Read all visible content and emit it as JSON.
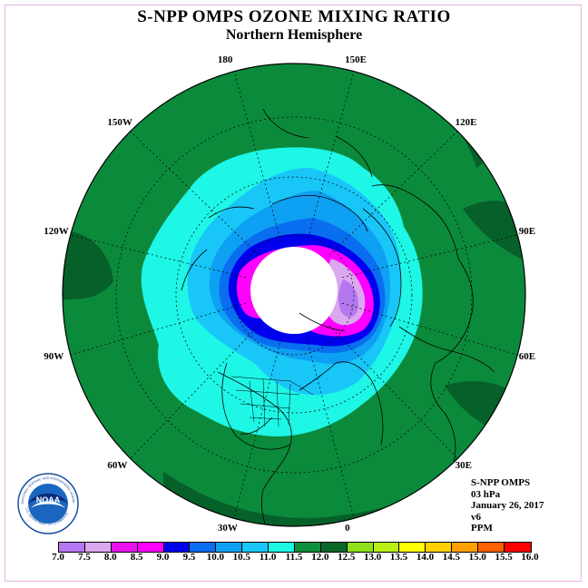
{
  "header": {
    "title": "S-NPP OMPS OZONE MIXING RATIO",
    "subtitle": "Northern Hemisphere"
  },
  "map": {
    "projection": "north-polar-stereographic",
    "longitude_labels": [
      {
        "text": "90E",
        "lon": 90
      },
      {
        "text": "60E",
        "lon": 60
      },
      {
        "text": "30E",
        "lon": 30
      },
      {
        "text": "0",
        "lon": 0
      },
      {
        "text": "30W",
        "lon": -30
      },
      {
        "text": "60W",
        "lon": -60
      },
      {
        "text": "90W",
        "lon": -90
      },
      {
        "text": "120W",
        "lon": -120
      },
      {
        "text": "150W",
        "lon": -150
      },
      {
        "text": "180",
        "lon": 180
      },
      {
        "text": "150E",
        "lon": 150
      },
      {
        "text": "120E",
        "lon": 120
      }
    ],
    "colors": {
      "outer": "#0c8a3c",
      "dark_green": "#06602a",
      "polar_no_data": "#ffffff"
    }
  },
  "info": {
    "instrument": "S-NPP OMPS",
    "level": "03 hPa",
    "date": "January 26, 2017",
    "version": "v6",
    "units": "PPM"
  },
  "colorbar": {
    "ticks": [
      "7.0",
      "7.5",
      "8.0",
      "8.5",
      "9.0",
      "9.5",
      "10.0",
      "10.5",
      "11.0",
      "11.5",
      "12.0",
      "12.5",
      "13.0",
      "13.5",
      "14.0",
      "14.5",
      "15.0",
      "15.5",
      "16.0"
    ],
    "colors": [
      "#b477f0",
      "#dba8ef",
      "#ec12ec",
      "#ff00ff",
      "#0000ee",
      "#0a6ef0",
      "#0ea0f2",
      "#18c6f8",
      "#1ef6e6",
      "#0e8f3e",
      "#086828",
      "#8ee018",
      "#b8f018",
      "#ffff00",
      "#ffd000",
      "#ffa000",
      "#ff6000",
      "#ff0000",
      "#8a5530"
    ]
  },
  "logo": {
    "text": "NOAA",
    "ring_text": "NATIONAL OCEANIC AND ATMOSPHERIC ADMINISTRATION",
    "ring_text_bottom": "U.S. DEPARTMENT OF COMMERCE"
  }
}
